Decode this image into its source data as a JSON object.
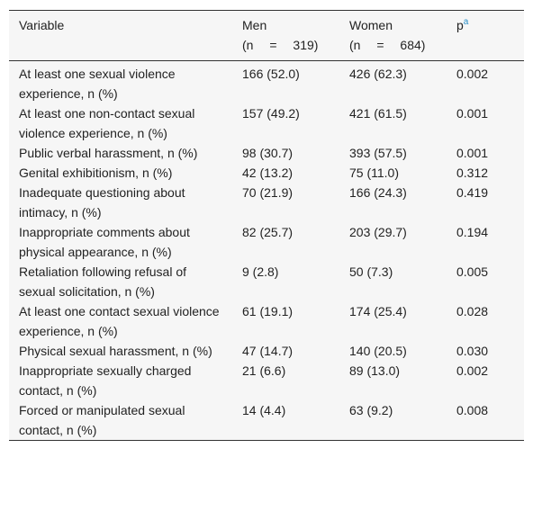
{
  "table": {
    "header": [
      {
        "text": "Variable"
      },
      {
        "text": "Men",
        "sub": "(n = 319)"
      },
      {
        "text": "Women",
        "sub": "(n = 684)"
      },
      {
        "text": "p",
        "sup": "a"
      }
    ],
    "rows": [
      [
        "At least one sexual violence experience, n (%)",
        "166 (52.0)",
        "426 (62.3)",
        "0.002"
      ],
      [
        "At least one non-contact sexual violence experience, n (%)",
        "157 (49.2)",
        "421 (61.5)",
        "0.001"
      ],
      [
        "Public verbal harassment, n (%)",
        "98 (30.7)",
        "393 (57.5)",
        "0.001"
      ],
      [
        "Genital exhibitionism, n (%)",
        "42 (13.2)",
        "75 (11.0)",
        "0.312"
      ],
      [
        "Inadequate questioning about intimacy, n (%)",
        "70 (21.9)",
        "166 (24.3)",
        "0.419"
      ],
      [
        "Inappropriate comments about physical appearance, n (%)",
        "82 (25.7)",
        "203 (29.7)",
        "0.194"
      ],
      [
        "Retaliation following refusal of sexual solicitation, n (%)",
        "9 (2.8)",
        "50 (7.3)",
        "0.005"
      ],
      [
        "At least one contact sexual violence experience, n (%)",
        "61 (19.1)",
        "174 (25.4)",
        "0.028"
      ],
      [
        "Physical sexual harassment, n (%)",
        "47 (14.7)",
        "140 (20.5)",
        "0.030"
      ],
      [
        "Inappropriate sexually charged contact, n (%)",
        "21 (6.6)",
        "89 (13.0)",
        "0.002"
      ],
      [
        "Forced or manipulated sexual contact, n (%)",
        "14 (4.4)",
        "63 (9.2)",
        "0.008"
      ]
    ]
  }
}
